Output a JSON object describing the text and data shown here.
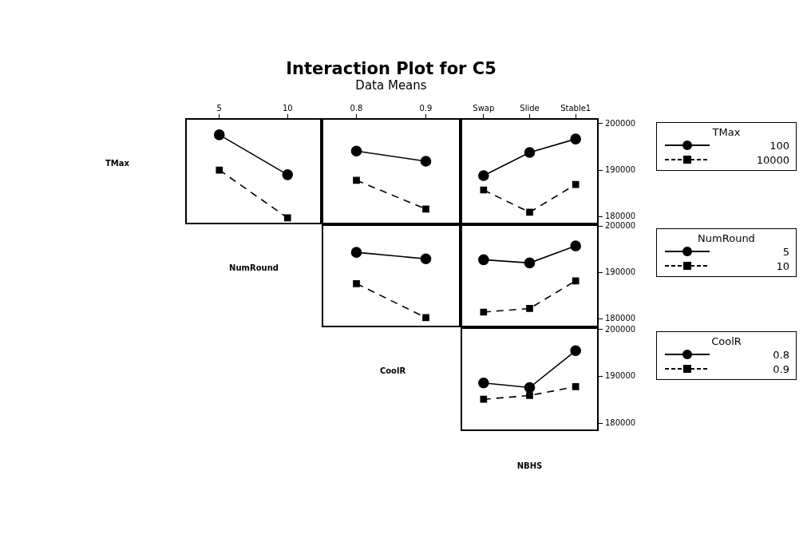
{
  "chart_data": [
    {
      "type": "other",
      "title": "Interaction Plot for C5",
      "subtitle": "Data Means"
    },
    {
      "type": "line",
      "ylabel": "TMax",
      "categories": [
        "5",
        "10"
      ],
      "ylim": [
        178300,
        201200
      ],
      "yticks": [
        180000,
        190000,
        200000
      ],
      "tick_labels": "x",
      "series": [
        {
          "color": "#000000",
          "marker": "circle",
          "line_style": "solid",
          "values": [
            197600,
            189000
          ]
        },
        {
          "color": "#000000",
          "marker": "square",
          "line_style": "dashed",
          "values": [
            190000,
            179700
          ]
        }
      ]
    },
    {
      "type": "line",
      "categories": [
        "0.8",
        "0.9"
      ],
      "ylim": [
        178300,
        201200
      ],
      "yticks": [
        180000,
        190000,
        200000
      ],
      "tick_labels": "x",
      "series": [
        {
          "color": "#000000",
          "marker": "circle",
          "line_style": "solid",
          "values": [
            194100,
            191900
          ]
        },
        {
          "color": "#000000",
          "marker": "square",
          "line_style": "dashed",
          "values": [
            187800,
            181600
          ]
        }
      ]
    },
    {
      "type": "line",
      "categories": [
        "Swap",
        "Slide",
        "Stable1"
      ],
      "ylim": [
        178300,
        201200
      ],
      "yticks": [
        180000,
        190000,
        200000
      ],
      "legend": "right",
      "legend_title": "TMax",
      "series": [
        {
          "name": "100",
          "color": "#000000",
          "marker": "circle",
          "line_style": "solid",
          "values": [
            188800,
            193800,
            196700
          ]
        },
        {
          "name": "10000",
          "color": "#000000",
          "marker": "square",
          "line_style": "dashed",
          "values": [
            185700,
            180900,
            186900
          ]
        }
      ]
    },
    {
      "type": "line",
      "ylabel": "NumRound",
      "categories": [
        null,
        null
      ],
      "ylim": [
        178100,
        200500
      ],
      "yticks": [
        180000,
        190000,
        200000
      ],
      "tick_labels": false,
      "series": [
        {
          "color": "#000000",
          "marker": "circle",
          "line_style": "solid",
          "values": [
            194400,
            193000
          ]
        },
        {
          "color": "#000000",
          "marker": "square",
          "line_style": "dashed",
          "values": [
            187600,
            180200
          ]
        }
      ]
    },
    {
      "type": "line",
      "categories": [
        null,
        null,
        null
      ],
      "ylim": [
        178100,
        200500
      ],
      "yticks": [
        180000,
        190000,
        200000
      ],
      "tick_labels": "y",
      "legend": "right",
      "legend_title": "NumRound",
      "series": [
        {
          "name": "5",
          "color": "#000000",
          "marker": "circle",
          "line_style": "solid",
          "values": [
            192800,
            192100,
            195800
          ]
        },
        {
          "name": "10",
          "color": "#000000",
          "marker": "square",
          "line_style": "dashed",
          "values": [
            181400,
            182200,
            188200
          ]
        }
      ]
    },
    {
      "type": "line",
      "ylabel": "CoolR",
      "xlabel": "NBHS",
      "categories": [
        null,
        null,
        null
      ],
      "ylim": [
        178300,
        200500
      ],
      "yticks": [
        180000,
        190000,
        200000
      ],
      "tick_labels": "y",
      "legend": "right",
      "legend_title": "CoolR",
      "series": [
        {
          "name": "0.8",
          "color": "#000000",
          "marker": "circle",
          "line_style": "solid",
          "values": [
            188600,
            187600,
            195500
          ]
        },
        {
          "name": "0.9",
          "color": "#000000",
          "marker": "square",
          "line_style": "dashed",
          "values": [
            185100,
            185900,
            187800
          ]
        }
      ]
    }
  ]
}
